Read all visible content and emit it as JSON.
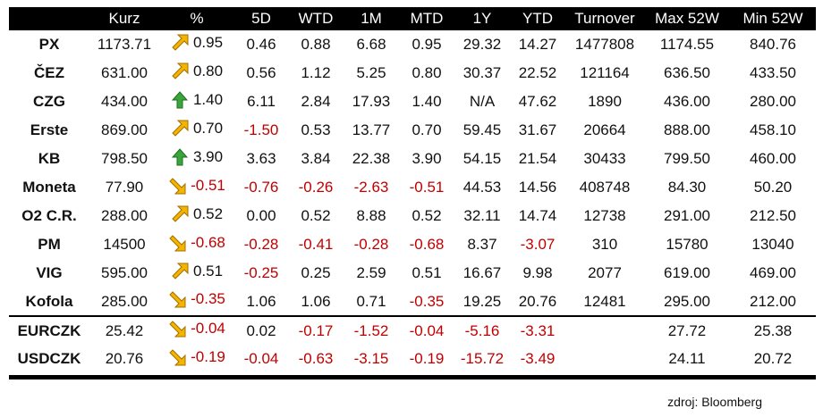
{
  "columns": [
    "",
    "Kurz",
    "%",
    "5D",
    "WTD",
    "1M",
    "MTD",
    "1Y",
    "YTD",
    "Turnover",
    "Max 52W",
    "Min 52W"
  ],
  "rows": [
    {
      "name": "PX",
      "kurz": "1173.71",
      "trend": "up-right",
      "pct": "0.95",
      "d5": "0.46",
      "wtd": "0.88",
      "m1": "6.68",
      "mtd": "0.95",
      "y1": "29.32",
      "ytd": "14.27",
      "turnover": "1477808",
      "max52": "1174.55",
      "min52": "840.76"
    },
    {
      "name": "ČEZ",
      "kurz": "631.00",
      "trend": "up-right",
      "pct": "0.80",
      "d5": "0.56",
      "wtd": "1.12",
      "m1": "5.25",
      "mtd": "0.80",
      "y1": "30.37",
      "ytd": "22.52",
      "turnover": "121164",
      "max52": "636.50",
      "min52": "433.50"
    },
    {
      "name": "CZG",
      "kurz": "434.00",
      "trend": "up",
      "pct": "1.40",
      "d5": "6.11",
      "wtd": "2.84",
      "m1": "17.93",
      "mtd": "1.40",
      "y1": "N/A",
      "ytd": "47.62",
      "turnover": "1890",
      "max52": "436.00",
      "min52": "280.00"
    },
    {
      "name": "Erste",
      "kurz": "869.00",
      "trend": "up-right",
      "pct": "0.70",
      "d5": "-1.50",
      "wtd": "0.53",
      "m1": "13.77",
      "mtd": "0.70",
      "y1": "59.45",
      "ytd": "31.67",
      "turnover": "20664",
      "max52": "888.00",
      "min52": "458.10"
    },
    {
      "name": "KB",
      "kurz": "798.50",
      "trend": "up",
      "pct": "3.90",
      "d5": "3.63",
      "wtd": "3.84",
      "m1": "22.38",
      "mtd": "3.90",
      "y1": "54.15",
      "ytd": "21.54",
      "turnover": "30433",
      "max52": "799.50",
      "min52": "460.00"
    },
    {
      "name": "Moneta",
      "kurz": "77.90",
      "trend": "down-right",
      "pct": "-0.51",
      "d5": "-0.76",
      "wtd": "-0.26",
      "m1": "-2.63",
      "mtd": "-0.51",
      "y1": "44.53",
      "ytd": "14.56",
      "turnover": "408748",
      "max52": "84.30",
      "min52": "50.20"
    },
    {
      "name": "O2 C.R.",
      "kurz": "288.00",
      "trend": "up-right",
      "pct": "0.52",
      "d5": "0.00",
      "wtd": "0.52",
      "m1": "8.88",
      "mtd": "0.52",
      "y1": "32.11",
      "ytd": "14.74",
      "turnover": "12738",
      "max52": "291.00",
      "min52": "212.50"
    },
    {
      "name": "PM",
      "kurz": "14500",
      "trend": "down-right",
      "pct": "-0.68",
      "d5": "-0.28",
      "wtd": "-0.41",
      "m1": "-0.28",
      "mtd": "-0.68",
      "y1": "8.37",
      "ytd": "-3.07",
      "turnover": "310",
      "max52": "15780",
      "min52": "13040"
    },
    {
      "name": "VIG",
      "kurz": "595.00",
      "trend": "up-right",
      "pct": "0.51",
      "d5": "-0.25",
      "wtd": "0.25",
      "m1": "2.59",
      "mtd": "0.51",
      "y1": "16.67",
      "ytd": "9.98",
      "turnover": "2077",
      "max52": "619.00",
      "min52": "469.00"
    },
    {
      "name": "Kofola",
      "kurz": "285.00",
      "trend": "down-right",
      "pct": "-0.35",
      "d5": "1.06",
      "wtd": "1.06",
      "m1": "0.71",
      "mtd": "-0.35",
      "y1": "19.25",
      "ytd": "20.76",
      "turnover": "12481",
      "max52": "295.00",
      "min52": "212.00"
    },
    {
      "name": "EURCZK",
      "kurz": "25.42",
      "trend": "down-right",
      "pct": "-0.04",
      "d5": "0.02",
      "wtd": "-0.17",
      "m1": "-1.52",
      "mtd": "-0.04",
      "y1": "-5.16",
      "ytd": "-3.31",
      "turnover": "",
      "max52": "27.72",
      "min52": "25.38",
      "sep": true
    },
    {
      "name": "USDCZK",
      "kurz": "20.76",
      "trend": "down-right",
      "pct": "-0.19",
      "d5": "-0.04",
      "wtd": "-0.63",
      "m1": "-3.15",
      "mtd": "-0.19",
      "y1": "-15.72",
      "ytd": "-3.49",
      "turnover": "",
      "max52": "24.11",
      "min52": "20.72"
    }
  ],
  "source": "zdroj: Bloomberg",
  "colors": {
    "header_bg": "#000000",
    "negative": "#c00000",
    "arrow_yellow": "#f4b400",
    "arrow_green": "#3aa53a"
  }
}
